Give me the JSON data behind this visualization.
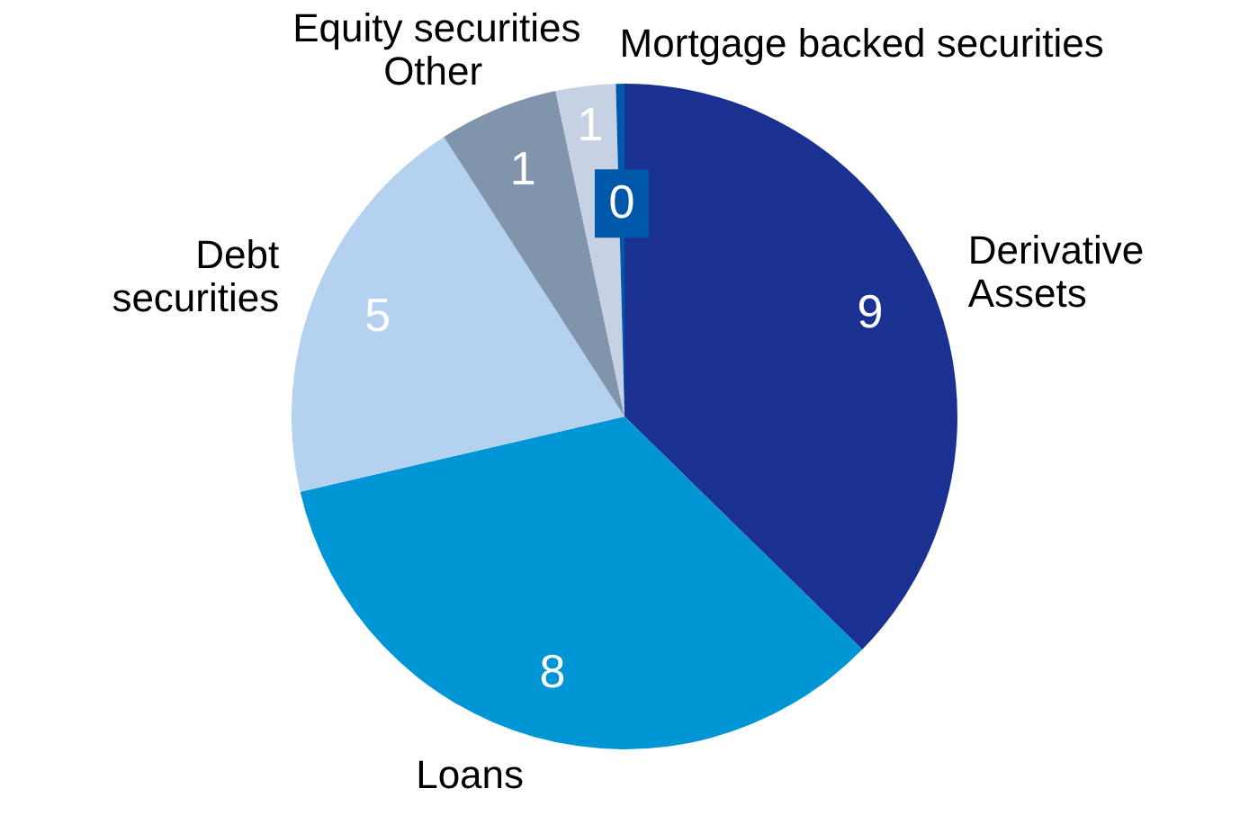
{
  "chart_data": {
    "type": "pie",
    "categories": [
      "Derivative Assets",
      "Loans",
      "Debt securities",
      "Other",
      "Equity securities",
      "Mortgage backed securities"
    ],
    "values": [
      9.0,
      8.2,
      4.7,
      1.4,
      0.7,
      0.1
    ],
    "value_labels": [
      "9",
      "8",
      "5",
      "1",
      "1",
      "0"
    ],
    "colors": [
      "#1b3191",
      "#0096d6",
      "#b4d2ef",
      "#8095ab",
      "#c6d2e3",
      "#0058ab"
    ]
  }
}
